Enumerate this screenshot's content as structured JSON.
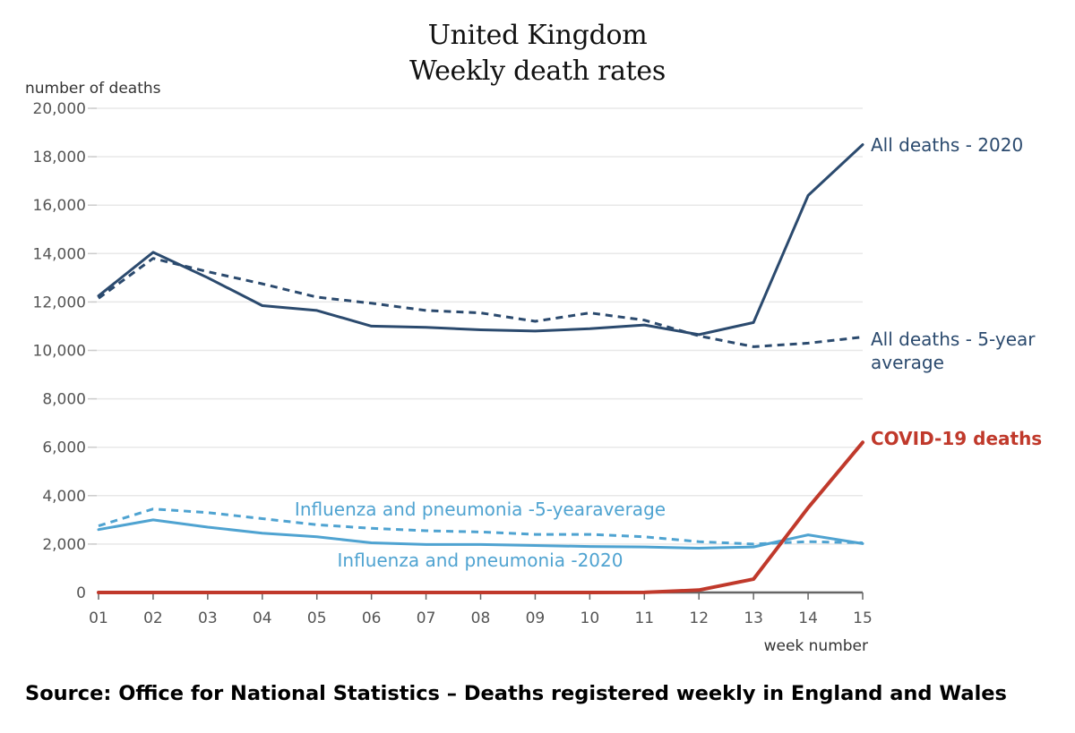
{
  "title": [
    "United Kingdom",
    "Weekly death rates"
  ],
  "source": "Source: Office for National Statistics – Deaths registered weekly in England and Wales",
  "chart_data": {
    "type": "line",
    "title": "United Kingdom Weekly death rates",
    "xlabel": "week number",
    "ylabel": "number of deaths",
    "ylim": [
      0,
      20000
    ],
    "yticks": [
      0,
      2000,
      4000,
      6000,
      8000,
      10000,
      12000,
      14000,
      16000,
      18000,
      20000
    ],
    "ytick_labels": [
      "0",
      "2,000",
      "4,000",
      "6,000",
      "8,000",
      "10,000",
      "12,000",
      "14,000",
      "16,000",
      "18,000",
      "20,000"
    ],
    "categories": [
      "01",
      "02",
      "03",
      "04",
      "05",
      "06",
      "07",
      "08",
      "09",
      "10",
      "11",
      "12",
      "13",
      "14",
      "15"
    ],
    "grid": true,
    "series": [
      {
        "name": "All deaths - 2020",
        "label_lines": [
          "All deaths - 2020"
        ],
        "color": "#2b4a6e",
        "dashed": false,
        "bold": false,
        "values": [
          12250,
          14050,
          13000,
          11850,
          11650,
          11000,
          10950,
          10850,
          10800,
          10900,
          11050,
          10650,
          11150,
          16400,
          18500
        ]
      },
      {
        "name": "All deaths - 5-year average",
        "label_lines": [
          "All deaths - 5-year",
          "average"
        ],
        "color": "#2b4a6e",
        "dashed": true,
        "bold": false,
        "values": [
          12150,
          13800,
          13250,
          12750,
          12200,
          11950,
          11650,
          11550,
          11200,
          11550,
          11250,
          10600,
          10150,
          10300,
          10550
        ]
      },
      {
        "name": "COVID-19 deaths",
        "label_lines": [
          "COVID-19 deaths"
        ],
        "color": "#c0392b",
        "dashed": false,
        "bold": true,
        "values": [
          0,
          0,
          0,
          0,
          0,
          0,
          0,
          0,
          0,
          0,
          5,
          100,
          550,
          3500,
          6200
        ]
      },
      {
        "name": "Influenza and pneumonia -5-yearaverage",
        "label_lines": [
          "Influenza and pneumonia -5-yearaverage"
        ],
        "color": "#4fa3d1",
        "dashed": true,
        "bold": false,
        "values": [
          2750,
          3450,
          3300,
          3050,
          2800,
          2650,
          2550,
          2500,
          2400,
          2400,
          2300,
          2100,
          2000,
          2100,
          2050
        ]
      },
      {
        "name": "Influenza and pneumonia -2020",
        "label_lines": [
          "Influenza and pneumonia -2020"
        ],
        "color": "#4fa3d1",
        "dashed": false,
        "bold": false,
        "values": [
          2600,
          3000,
          2700,
          2450,
          2300,
          2050,
          1980,
          1980,
          1940,
          1900,
          1880,
          1830,
          1880,
          2380,
          2020
        ]
      }
    ]
  }
}
